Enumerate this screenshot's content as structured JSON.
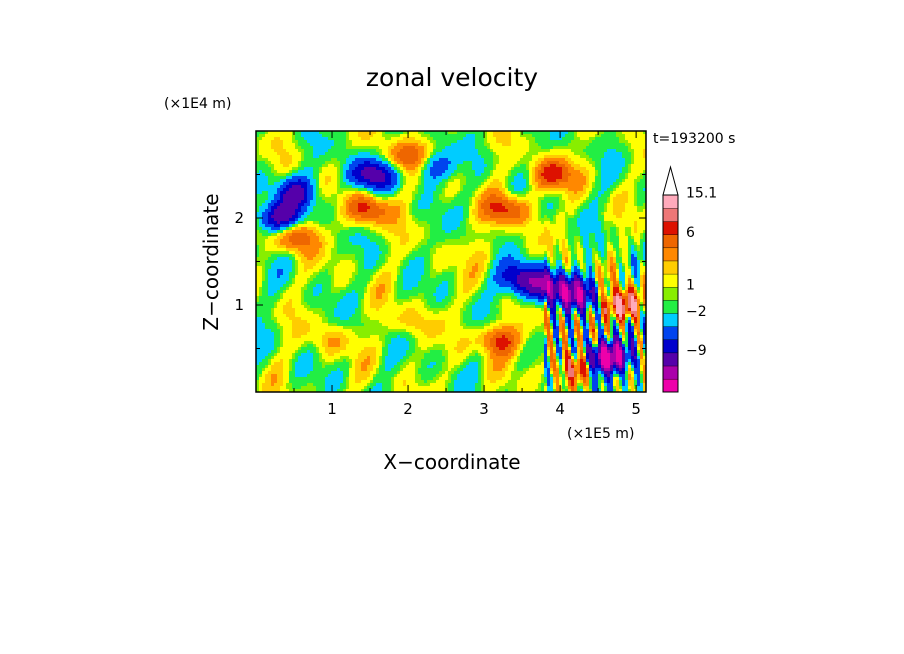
{
  "chart_data": {
    "type": "heatmap",
    "title": "zonal velocity",
    "xlabel": "X−coordinate",
    "ylabel": "Z−coordinate",
    "x_unit": "(×1E5 m)",
    "y_unit": "(×1E4 m)",
    "time_label": "t=193200 s",
    "xlim": [
      0,
      5.13
    ],
    "ylim": [
      0,
      3
    ],
    "x_ticks": [
      "1",
      "2",
      "3",
      "4",
      "5"
    ],
    "x_tick_values": [
      1,
      2,
      3,
      4,
      5
    ],
    "y_ticks": [
      "1",
      "2"
    ],
    "y_tick_values": [
      1,
      2
    ],
    "colorbar": {
      "levels": [
        {
          "color": "#ee00aa"
        },
        {
          "color": "#aa00aa"
        },
        {
          "color": "#5500aa"
        },
        {
          "color": "#0000cc"
        },
        {
          "color": "#0044ee"
        },
        {
          "color": "#00ccff"
        },
        {
          "color": "#22ee44"
        },
        {
          "color": "#88ee00"
        },
        {
          "color": "#ffff00"
        },
        {
          "color": "#ffcc00"
        },
        {
          "color": "#ff8800"
        },
        {
          "color": "#ee6600"
        },
        {
          "color": "#dd1100"
        },
        {
          "color": "#ee7777"
        },
        {
          "color": "#ffaabb"
        }
      ],
      "tick_labels": [
        "15.1",
        "6",
        "1",
        "−2",
        "−9"
      ],
      "extend_top": true
    },
    "field_features": [
      {
        "x": 0.3,
        "z": 2.0,
        "value": -9
      },
      {
        "x": 0.5,
        "z": 2.3,
        "value": -6
      },
      {
        "x": 1.5,
        "z": 2.5,
        "value": -8
      },
      {
        "x": 2.3,
        "z": 2.6,
        "value": -5
      },
      {
        "x": 3.5,
        "z": 1.3,
        "value": -8
      },
      {
        "x": 3.9,
        "z": 1.2,
        "value": -9
      },
      {
        "x": 4.3,
        "z": 1.1,
        "value": -9
      },
      {
        "x": 4.5,
        "z": 0.4,
        "value": -9
      },
      {
        "x": 4.7,
        "z": 0.4,
        "value": -9
      },
      {
        "x": 4.8,
        "z": 1.0,
        "value": 10
      },
      {
        "x": 0.5,
        "z": 1.8,
        "value": 6
      },
      {
        "x": 1.5,
        "z": 2.1,
        "value": 6
      },
      {
        "x": 2.0,
        "z": 2.7,
        "value": 6
      },
      {
        "x": 3.3,
        "z": 2.1,
        "value": 6
      },
      {
        "x": 3.9,
        "z": 2.5,
        "value": 6
      },
      {
        "x": 3.2,
        "z": 0.6,
        "value": 6
      },
      {
        "x": 4.2,
        "z": 0.3,
        "value": 8
      },
      {
        "x": 1.0,
        "z": 0.6,
        "value": 2
      },
      {
        "x": 2.0,
        "z": 0.8,
        "value": 2
      },
      {
        "x": 3.0,
        "z": 1.6,
        "value": 1
      }
    ]
  }
}
